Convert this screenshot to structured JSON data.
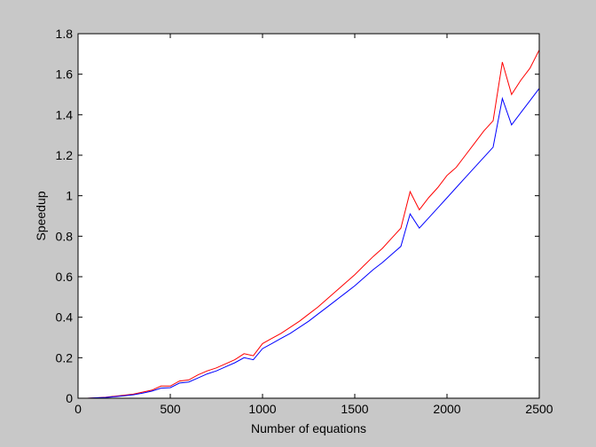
{
  "chart_data": {
    "type": "line",
    "title": "",
    "xlabel": "Number of equations",
    "ylabel": "Speedup",
    "xlim": [
      0,
      2500
    ],
    "ylim": [
      0,
      1.8
    ],
    "xticks": [
      0,
      500,
      1000,
      1500,
      2000,
      2500
    ],
    "yticks": [
      0,
      0.2,
      0.4,
      0.6,
      0.8,
      1,
      1.2,
      1.4,
      1.6,
      1.8
    ],
    "xtick_labels": [
      "0",
      "500",
      "1000",
      "1500",
      "2000",
      "2500"
    ],
    "ytick_labels": [
      "0",
      "0.2",
      "0.4",
      "0.6",
      "0.8",
      "1",
      "1.2",
      "1.4",
      "1.6",
      "1.8"
    ],
    "grid": false,
    "legend": "none",
    "series": [
      {
        "color": "#ff0000",
        "x": [
          50,
          100,
          150,
          200,
          250,
          300,
          350,
          400,
          450,
          500,
          550,
          600,
          650,
          700,
          750,
          800,
          850,
          900,
          950,
          1000,
          1050,
          1100,
          1150,
          1200,
          1250,
          1300,
          1350,
          1400,
          1450,
          1500,
          1550,
          1600,
          1650,
          1700,
          1750,
          1800,
          1850,
          1900,
          1950,
          2000,
          2050,
          2100,
          2150,
          2200,
          2250,
          2300,
          2350,
          2400,
          2450,
          2500
        ],
        "y": [
          0.0,
          0.002,
          0.005,
          0.01,
          0.015,
          0.02,
          0.03,
          0.04,
          0.06,
          0.06,
          0.085,
          0.09,
          0.115,
          0.135,
          0.15,
          0.17,
          0.19,
          0.22,
          0.21,
          0.27,
          0.295,
          0.32,
          0.35,
          0.38,
          0.415,
          0.45,
          0.49,
          0.53,
          0.57,
          0.61,
          0.655,
          0.7,
          0.74,
          0.79,
          0.84,
          1.02,
          0.93,
          0.99,
          1.04,
          1.1,
          1.14,
          1.2,
          1.26,
          1.32,
          1.37,
          1.66,
          1.5,
          1.57,
          1.63,
          1.72
        ]
      },
      {
        "color": "#0000ff",
        "x": [
          50,
          100,
          150,
          200,
          250,
          300,
          350,
          400,
          450,
          500,
          550,
          600,
          650,
          700,
          750,
          800,
          850,
          900,
          950,
          1000,
          1050,
          1100,
          1150,
          1200,
          1250,
          1300,
          1350,
          1400,
          1450,
          1500,
          1550,
          1600,
          1650,
          1700,
          1750,
          1800,
          1850,
          1900,
          1950,
          2000,
          2050,
          2100,
          2150,
          2200,
          2250,
          2300,
          2350,
          2400,
          2450,
          2500
        ],
        "y": [
          0.0,
          0.002,
          0.004,
          0.008,
          0.012,
          0.017,
          0.025,
          0.035,
          0.05,
          0.052,
          0.075,
          0.08,
          0.1,
          0.12,
          0.135,
          0.155,
          0.175,
          0.2,
          0.19,
          0.245,
          0.27,
          0.295,
          0.32,
          0.35,
          0.38,
          0.415,
          0.45,
          0.485,
          0.52,
          0.555,
          0.595,
          0.635,
          0.67,
          0.71,
          0.75,
          0.91,
          0.84,
          0.89,
          0.94,
          0.99,
          1.04,
          1.09,
          1.14,
          1.19,
          1.24,
          1.48,
          1.35,
          1.41,
          1.47,
          1.53
        ]
      }
    ]
  }
}
